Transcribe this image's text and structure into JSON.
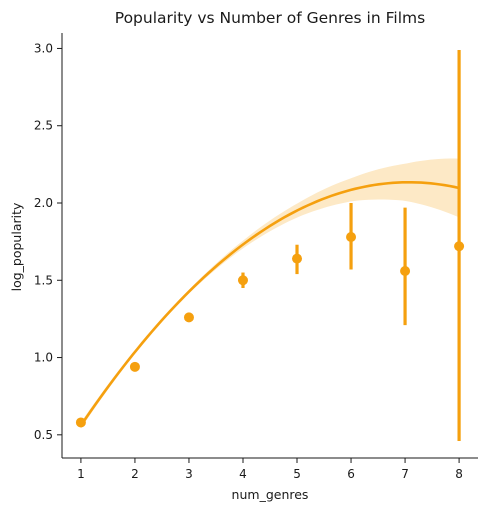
{
  "chart_data": {
    "type": "scatter",
    "title": "Popularity vs Number of Genres in Films",
    "xlabel": "num_genres",
    "ylabel": "log_popularity",
    "xlim": [
      0.65,
      8.35
    ],
    "ylim": [
      0.35,
      3.1
    ],
    "xticks": [
      "1",
      "2",
      "3",
      "4",
      "5",
      "6",
      "7",
      "8"
    ],
    "yticks": [
      "0.5",
      "1.0",
      "1.5",
      "2.0",
      "2.5",
      "3.0"
    ],
    "grid": false,
    "legend": "none",
    "color": "#f5a00f",
    "band_color": "#fde9c6",
    "points": [
      {
        "x": 1,
        "y": 0.58,
        "ci": [
          0.565,
          0.595
        ]
      },
      {
        "x": 2,
        "y": 0.94,
        "ci": [
          0.93,
          0.955
        ]
      },
      {
        "x": 3,
        "y": 1.26,
        "ci": [
          1.245,
          1.275
        ]
      },
      {
        "x": 4,
        "y": 1.5,
        "ci": [
          1.45,
          1.55
        ]
      },
      {
        "x": 5,
        "y": 1.64,
        "ci": [
          1.54,
          1.73
        ]
      },
      {
        "x": 6,
        "y": 1.78,
        "ci": [
          1.57,
          2.0
        ]
      },
      {
        "x": 7,
        "y": 1.56,
        "ci": [
          1.21,
          1.97
        ]
      },
      {
        "x": 8,
        "y": 1.72,
        "ci": [
          0.46,
          2.99
        ]
      }
    ],
    "regression": {
      "order": 2,
      "coefficients": [
        -0.042698,
        0.60384,
        -0.000734
      ],
      "band_halfwidth": [
        {
          "x": 1,
          "w": 0.02
        },
        {
          "x": 2,
          "w": 0.012
        },
        {
          "x": 3,
          "w": 0.012
        },
        {
          "x": 4,
          "w": 0.025
        },
        {
          "x": 5,
          "w": 0.045
        },
        {
          "x": 6,
          "w": 0.075
        },
        {
          "x": 7,
          "w": 0.12
        },
        {
          "x": 8,
          "w": 0.19
        }
      ]
    }
  }
}
